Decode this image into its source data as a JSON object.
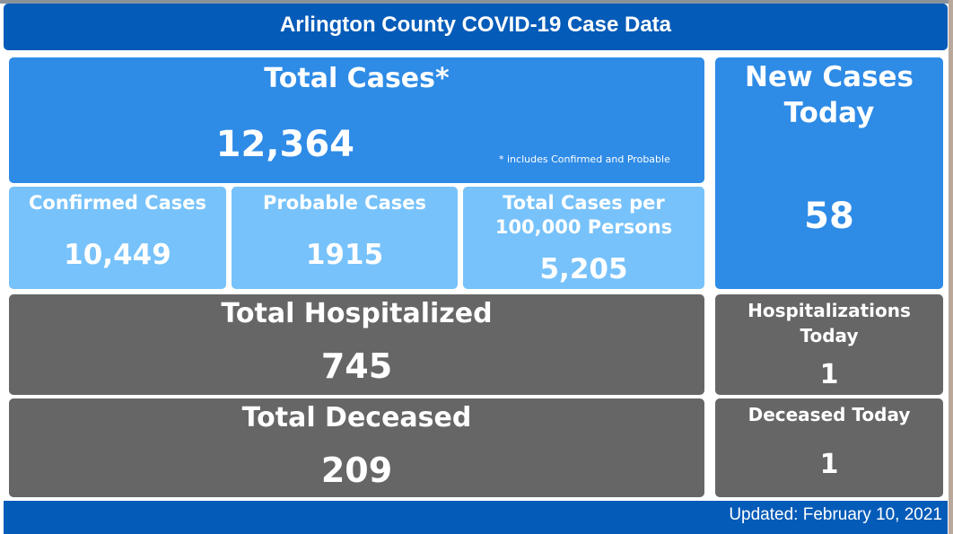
{
  "header": {
    "title": "Arlington County COVID-19 Case Data"
  },
  "total_cases": {
    "label": "Total Cases*",
    "value": "12,364",
    "note": "* includes Confirmed and Probable"
  },
  "confirmed": {
    "label": "Confirmed Cases",
    "value": "10,449"
  },
  "probable": {
    "label": "Probable Cases",
    "value": "1915"
  },
  "per_100k": {
    "label_line1": "Total Cases per",
    "label_line2": "100,000 Persons",
    "value": "5,205"
  },
  "new_cases": {
    "label_line1": "New Cases",
    "label_line2": "Today",
    "value": "58"
  },
  "hospitalized": {
    "label": "Total Hospitalized",
    "value": "745"
  },
  "hosp_today": {
    "label_line1": "Hospitalizations",
    "label_line2": "Today",
    "value": "1"
  },
  "deceased": {
    "label": "Total Deceased",
    "value": "209"
  },
  "deceased_today": {
    "label": "Deceased Today",
    "value": "1"
  },
  "footer": {
    "updated": "Updated: February 10, 2021"
  },
  "colors": {
    "header": "#055bb8",
    "primary": "#2e8be6",
    "light": "#77c2fa",
    "gray": "#666666"
  }
}
